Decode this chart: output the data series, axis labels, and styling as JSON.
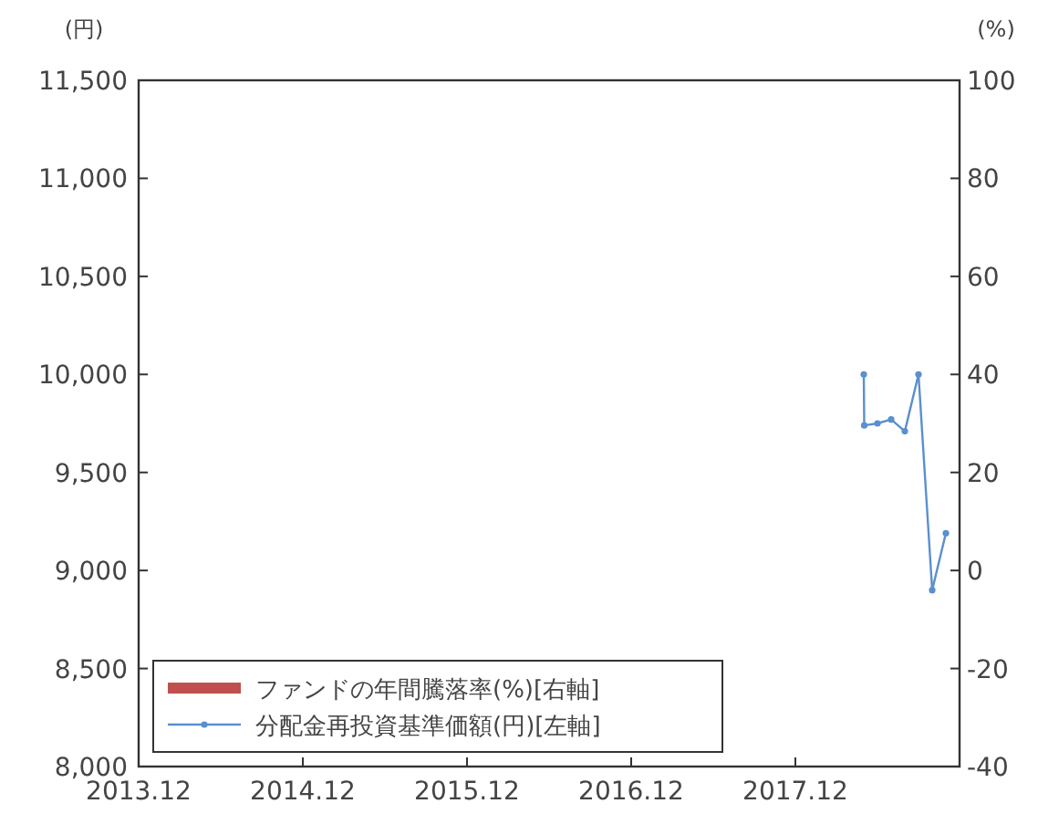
{
  "chart_data": {
    "type": "line",
    "ylabel": "(円)",
    "y2label": "(%)",
    "x": [
      "2018-05-01",
      "2018-05-02",
      "2018-06-01",
      "2018-07-01",
      "2018-08-01",
      "2018-09-01",
      "2018-10-01",
      "2018-11-01"
    ],
    "series": [
      {
        "name": "ファンドの年間騰落率(%)[右軸]",
        "type": "bar",
        "axis": "y2",
        "color": "#c0504d",
        "values": [
          null,
          null,
          null,
          null,
          null,
          null,
          null,
          null
        ]
      },
      {
        "name": "分配金再投資基準価額(円)[左軸]",
        "axis": "y",
        "color": "#5b8fd0",
        "marker": "circle",
        "values": [
          10000,
          9740,
          9750,
          9770,
          9710,
          10000,
          8900,
          9190
        ]
      }
    ],
    "xlim": [
      "2013-12",
      "2018-12"
    ],
    "xticks": [
      {
        "value": "2013-12",
        "label": "2013.12"
      },
      {
        "value": "2014-12",
        "label": "2014.12"
      },
      {
        "value": "2015-12",
        "label": "2015.12"
      },
      {
        "value": "2016-12",
        "label": "2016.12"
      },
      {
        "value": "2017-12",
        "label": "2017.12"
      }
    ],
    "ylim": [
      8000,
      11500
    ],
    "yticks": [
      {
        "value": 8000,
        "label": "8,000"
      },
      {
        "value": 8500,
        "label": "8,500"
      },
      {
        "value": 9000,
        "label": "9,000"
      },
      {
        "value": 9500,
        "label": "9,500"
      },
      {
        "value": 10000,
        "label": "10,000"
      },
      {
        "value": 10500,
        "label": "10,500"
      },
      {
        "value": 11000,
        "label": "11,000"
      },
      {
        "value": 11500,
        "label": "11,500"
      }
    ],
    "y2lim": [
      -40,
      100
    ],
    "y2ticks": [
      -40,
      -20,
      0,
      20,
      40,
      60,
      80,
      100
    ],
    "grid": false,
    "legend": "bottom left"
  }
}
